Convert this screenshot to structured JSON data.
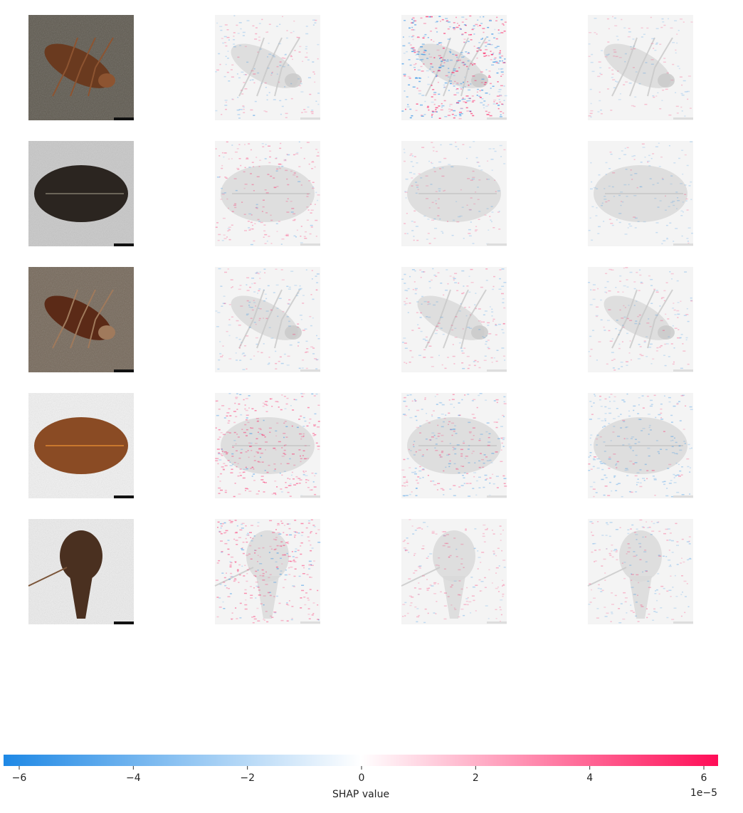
{
  "chart_data": {
    "type": "heatmap",
    "subtype": "shap-image-plot",
    "rows": [
      {
        "original": {
          "subject": "cockroach",
          "icon": "cockroach-photo",
          "background": "#5f5a50",
          "body": "#6a3a1f",
          "highlight": "#8d5431"
        },
        "shap_maps": [
          {
            "dominant_sign": "mixed",
            "intensity": 0.2
          },
          {
            "dominant_sign": "mixed",
            "intensity": 0.75
          },
          {
            "dominant_sign": "mixed",
            "intensity": 0.12
          }
        ]
      },
      {
        "original": {
          "subject": "beetle",
          "icon": "beetle-photo",
          "background": "#c8c8c8",
          "body": "#2b2520",
          "highlight": "#6b6558"
        },
        "shap_maps": [
          {
            "dominant_sign": "positive",
            "intensity": 0.25
          },
          {
            "dominant_sign": "mixed",
            "intensity": 0.15
          },
          {
            "dominant_sign": "negative",
            "intensity": 0.12
          }
        ]
      },
      {
        "original": {
          "subject": "cockroaches-on-leaf-litter",
          "icon": "cockroach-photo",
          "background": "#76695b",
          "body": "#5b2a17",
          "highlight": "#a07a5c"
        },
        "shap_maps": [
          {
            "dominant_sign": "mixed",
            "intensity": 0.2
          },
          {
            "dominant_sign": "mixed",
            "intensity": 0.22
          },
          {
            "dominant_sign": "mixed",
            "intensity": 0.18
          }
        ]
      },
      {
        "original": {
          "subject": "beetle-side-view",
          "icon": "beetle-photo",
          "background": "#f1f1f1",
          "body": "#8a4b24",
          "highlight": "#c9782e"
        },
        "shap_maps": [
          {
            "dominant_sign": "positive",
            "intensity": 0.45
          },
          {
            "dominant_sign": "mixed",
            "intensity": 0.35
          },
          {
            "dominant_sign": "negative",
            "intensity": 0.3
          }
        ]
      },
      {
        "original": {
          "subject": "weevil",
          "icon": "weevil-photo",
          "background": "#ececec",
          "body": "#4a3020",
          "highlight": "#7a5438"
        },
        "shap_maps": [
          {
            "dominant_sign": "positive",
            "intensity": 0.45
          },
          {
            "dominant_sign": "positive",
            "intensity": 0.2
          },
          {
            "dominant_sign": "mixed",
            "intensity": 0.22
          }
        ]
      }
    ],
    "colorbar": {
      "title": "SHAP value",
      "scale_label": "1e−5",
      "range": [
        -6,
        6
      ],
      "ticks": [
        -6,
        -4,
        -2,
        0,
        2,
        4,
        6
      ],
      "tick_labels": [
        "−6",
        "−4",
        "−2",
        "0",
        "2",
        "4",
        "6"
      ],
      "negative_color": "#1e88e5",
      "positive_color": "#ff0d57",
      "zero_color": "#ffffff"
    }
  }
}
